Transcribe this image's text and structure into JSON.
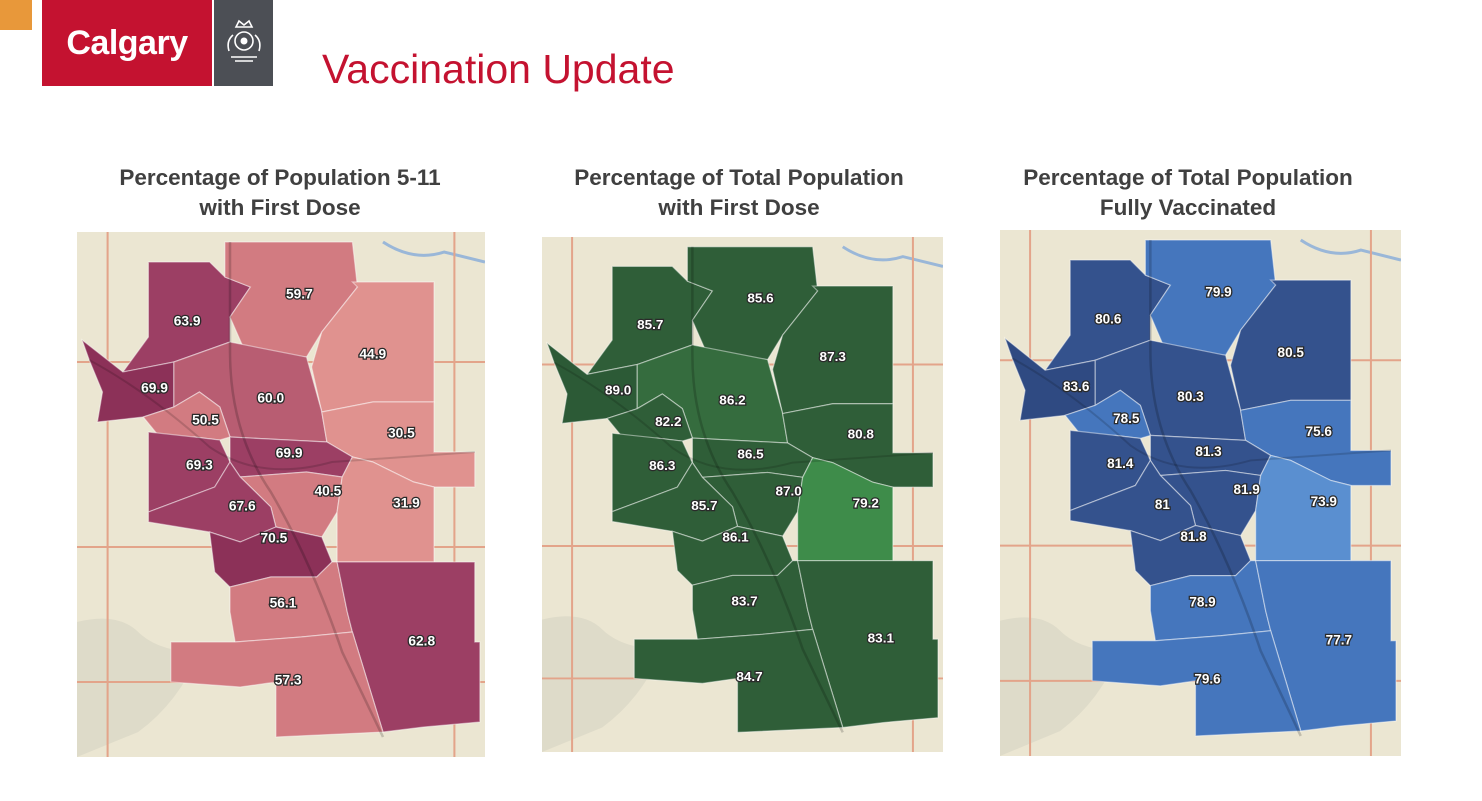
{
  "header": {
    "logo_text": "Calgary",
    "title": "Vaccination Update"
  },
  "colors": {
    "brand_red": "#c41230",
    "logo_grey": "#4c4f55",
    "accent_orange": "#e8983a",
    "title_text": "#404040",
    "map_land": "#ebe6d2"
  },
  "maps": [
    {
      "title_line1": "Percentage of Population 5-11",
      "title_line2": "with First Dose",
      "palette": [
        "#e0928f",
        "#d27b81",
        "#b85d72",
        "#9c3f64",
        "#8c3158"
      ],
      "regions": [
        {
          "id": "nw",
          "value": "63.9",
          "shade": 3
        },
        {
          "id": "n",
          "value": "59.7",
          "shade": 1
        },
        {
          "id": "ne",
          "value": "44.9",
          "shade": 0
        },
        {
          "id": "w",
          "value": "69.9",
          "shade": 4
        },
        {
          "id": "cn",
          "value": "60.0",
          "shade": 2
        },
        {
          "id": "wc",
          "value": "50.5",
          "shade": 1
        },
        {
          "id": "ec",
          "value": "30.5",
          "shade": 0
        },
        {
          "id": "sw1",
          "value": "69.3",
          "shade": 3
        },
        {
          "id": "cc",
          "value": "69.9",
          "shade": 3
        },
        {
          "id": "cs",
          "value": "40.5",
          "shade": 1
        },
        {
          "id": "e",
          "value": "31.9",
          "shade": 0
        },
        {
          "id": "sw2",
          "value": "67.6",
          "shade": 3
        },
        {
          "id": "cs2",
          "value": "70.5",
          "shade": 4
        },
        {
          "id": "s",
          "value": "56.1",
          "shade": 1
        },
        {
          "id": "se",
          "value": "62.8",
          "shade": 3
        },
        {
          "id": "ss",
          "value": "57.3",
          "shade": 1
        }
      ]
    },
    {
      "title_line1": "Percentage of Total Population",
      "title_line2": "with First Dose",
      "palette": [
        "#3e8c4a",
        "#356c3e",
        "#2f5e38",
        "#2c5a36",
        "#295433"
      ],
      "regions": [
        {
          "id": "nw",
          "value": "85.7",
          "shade": 2
        },
        {
          "id": "n",
          "value": "85.6",
          "shade": 2
        },
        {
          "id": "ne",
          "value": "87.3",
          "shade": 2
        },
        {
          "id": "w",
          "value": "89.0",
          "shade": 3
        },
        {
          "id": "cn",
          "value": "86.2",
          "shade": 1
        },
        {
          "id": "wc",
          "value": "82.2",
          "shade": 2
        },
        {
          "id": "ec",
          "value": "80.8",
          "shade": 2
        },
        {
          "id": "sw1",
          "value": "86.3",
          "shade": 2
        },
        {
          "id": "cc",
          "value": "86.5",
          "shade": 2
        },
        {
          "id": "cs",
          "value": "87.0",
          "shade": 2
        },
        {
          "id": "e",
          "value": "79.2",
          "shade": 0
        },
        {
          "id": "sw2",
          "value": "85.7",
          "shade": 2
        },
        {
          "id": "cs2",
          "value": "86.1",
          "shade": 2
        },
        {
          "id": "s",
          "value": "83.7",
          "shade": 2
        },
        {
          "id": "se",
          "value": "83.1",
          "shade": 2
        },
        {
          "id": "ss",
          "value": "84.7",
          "shade": 2
        }
      ]
    },
    {
      "title_line1": "Percentage of Total Population",
      "title_line2": "Fully Vaccinated",
      "palette": [
        "#5a8fd0",
        "#4576bd",
        "#3d68ab",
        "#34528d",
        "#2f4a82"
      ],
      "regions": [
        {
          "id": "nw",
          "value": "80.6",
          "shade": 3
        },
        {
          "id": "n",
          "value": "79.9",
          "shade": 1
        },
        {
          "id": "ne",
          "value": "80.5",
          "shade": 3
        },
        {
          "id": "w",
          "value": "83.6",
          "shade": 4
        },
        {
          "id": "cn",
          "value": "80.3",
          "shade": 3
        },
        {
          "id": "wc",
          "value": "78.5",
          "shade": 1
        },
        {
          "id": "ec",
          "value": "75.6",
          "shade": 1
        },
        {
          "id": "sw1",
          "value": "81.4",
          "shade": 3
        },
        {
          "id": "cc",
          "value": "81.3",
          "shade": 3
        },
        {
          "id": "cs",
          "value": "81.9",
          "shade": 3
        },
        {
          "id": "e",
          "value": "73.9",
          "shade": 0
        },
        {
          "id": "sw2",
          "value": "81",
          "shade": 3
        },
        {
          "id": "cs2",
          "value": "81.8",
          "shade": 3
        },
        {
          "id": "s",
          "value": "78.9",
          "shade": 1
        },
        {
          "id": "se",
          "value": "77.7",
          "shade": 1
        },
        {
          "id": "ss",
          "value": "79.6",
          "shade": 1
        }
      ]
    }
  ]
}
